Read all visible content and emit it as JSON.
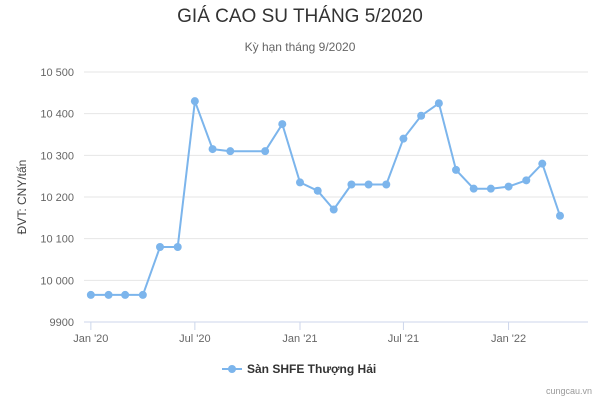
{
  "chart_data": {
    "type": "line",
    "title": "GIÁ CAO SU THÁNG 5/2020",
    "subtitle": "Kỳ hạn tháng 9/2020",
    "xlabel": "",
    "ylabel": "ĐVT: CNY/tấn",
    "ylim": [
      9900,
      10500
    ],
    "yticks": [
      9900,
      10000,
      10100,
      10200,
      10300,
      10400,
      10500
    ],
    "ytick_labels": [
      "9900",
      "10 000",
      "10 100",
      "10 200",
      "10 300",
      "10 400",
      "10 500"
    ],
    "xticks": [
      {
        "label": "Jan '20",
        "x": "2020-01-01"
      },
      {
        "label": "Jul '20",
        "x": "2020-07-01"
      },
      {
        "label": "Jan '21",
        "x": "2021-01-01"
      },
      {
        "label": "Jul '21",
        "x": "2021-07-01"
      },
      {
        "label": "Jan '22",
        "x": "2022-01-01"
      }
    ],
    "xlim": [
      "2019-12-20",
      "2022-05-20"
    ],
    "grid": true,
    "legend_position": "bottom",
    "series": [
      {
        "name": "Sàn SHFE Thượng Hải",
        "color": "#7cb5ec",
        "points": [
          {
            "x": "2020-01-01",
            "y": 9965
          },
          {
            "x": "2020-02-01",
            "y": 9965
          },
          {
            "x": "2020-03-01",
            "y": 9965
          },
          {
            "x": "2020-04-01",
            "y": 9965
          },
          {
            "x": "2020-05-01",
            "y": 10080
          },
          {
            "x": "2020-06-01",
            "y": 10080
          },
          {
            "x": "2020-07-01",
            "y": 10430
          },
          {
            "x": "2020-08-01",
            "y": 10315
          },
          {
            "x": "2020-09-01",
            "y": 10310
          },
          {
            "x": "2020-11-01",
            "y": 10310
          },
          {
            "x": "2020-12-01",
            "y": 10375
          },
          {
            "x": "2021-01-01",
            "y": 10235
          },
          {
            "x": "2021-02-01",
            "y": 10215
          },
          {
            "x": "2021-03-01",
            "y": 10170
          },
          {
            "x": "2021-04-01",
            "y": 10230
          },
          {
            "x": "2021-05-01",
            "y": 10230
          },
          {
            "x": "2021-06-01",
            "y": 10230
          },
          {
            "x": "2021-07-01",
            "y": 10340
          },
          {
            "x": "2021-08-01",
            "y": 10395
          },
          {
            "x": "2021-09-01",
            "y": 10425
          },
          {
            "x": "2021-10-01",
            "y": 10265
          },
          {
            "x": "2021-11-01",
            "y": 10220
          },
          {
            "x": "2021-12-01",
            "y": 10220
          },
          {
            "x": "2022-01-01",
            "y": 10225
          },
          {
            "x": "2022-02-01",
            "y": 10240
          },
          {
            "x": "2022-03-01",
            "y": 10280
          },
          {
            "x": "2022-04-01",
            "y": 10155
          }
        ]
      }
    ]
  },
  "credit": "cungcau.vn"
}
